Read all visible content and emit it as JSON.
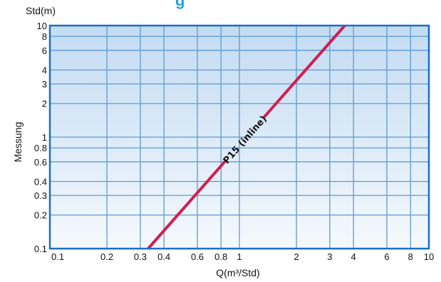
{
  "title_fragment": "g",
  "chart_data": {
    "type": "line",
    "x_scale": "log",
    "y_scale": "log",
    "xlabel": "Q(m³/Std)",
    "ylabel": "Messung",
    "y_unit_label": "Std(m)",
    "xlim": [
      0.1,
      10
    ],
    "ylim": [
      0.1,
      10
    ],
    "x_ticks": [
      0.1,
      0.2,
      0.3,
      0.4,
      0.6,
      0.8,
      1,
      2,
      3,
      4,
      6,
      8,
      10
    ],
    "x_tick_labels": [
      "0.1",
      "0.2",
      "0.3",
      "0.4",
      "0.6",
      "0.8",
      "1",
      "2",
      "3",
      "4",
      "6",
      "8",
      "10"
    ],
    "y_ticks": [
      0.1,
      0.2,
      0.3,
      0.4,
      0.6,
      0.8,
      1,
      2,
      3,
      4,
      6,
      8,
      10
    ],
    "y_tick_labels": [
      "0.1",
      "0.2",
      "0.3",
      "0.4",
      "0.6",
      "0.8",
      "1",
      "2",
      "3",
      "4",
      "6",
      "8",
      "10"
    ],
    "grid": true,
    "series": [
      {
        "name": "P15 (inline)",
        "color": "#d01f4f",
        "x": [
          0.33,
          3.6
        ],
        "y": [
          0.1,
          10
        ]
      }
    ],
    "colors": {
      "frame": "#1a6fc4",
      "grid": "#5b9ad8",
      "fill_top": "#c3dbf2",
      "fill_bottom": "#f5f9fd"
    }
  }
}
